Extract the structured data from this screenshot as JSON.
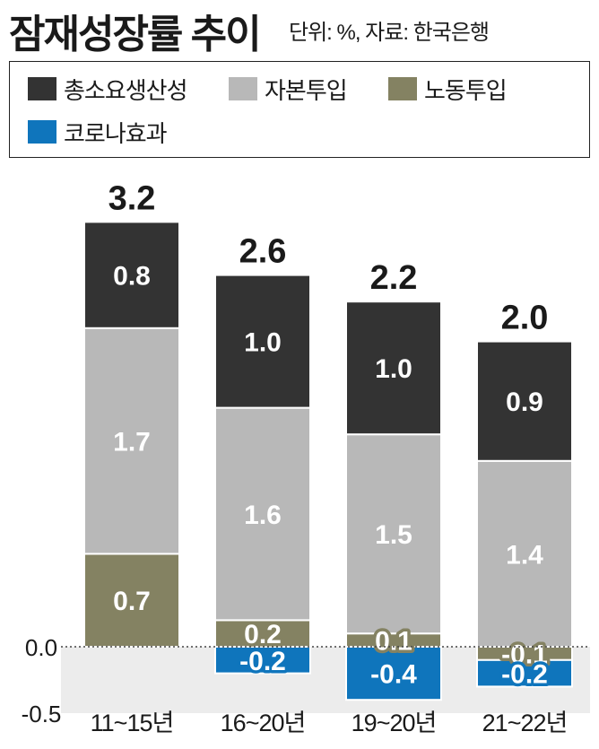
{
  "header": {
    "title": "잠재성장률 추이",
    "subtitle": "단위: %, 자료: 한국은행"
  },
  "colors": {
    "tfp": "#333333",
    "capital": "#b8b8b8",
    "labor": "#848262",
    "covid": "#0f75bc",
    "negative_zone": "#ececec"
  },
  "chart_data": {
    "type": "bar",
    "stacked": true,
    "title": "잠재성장률 추이",
    "unit": "단위: %",
    "source": "자료: 한국은행",
    "categories": [
      "11~15년",
      "16~20년",
      "19~20년",
      "21~22년"
    ],
    "totals": [
      3.2,
      2.6,
      2.2,
      2.0
    ],
    "series": [
      {
        "name": "노동투입",
        "values": [
          0.7,
          0.2,
          0.1,
          -0.1
        ],
        "labels": [
          "0.7",
          "0.2",
          "0.1",
          "-0.1"
        ]
      },
      {
        "name": "자본투입",
        "values": [
          1.7,
          1.6,
          1.5,
          1.4
        ],
        "labels": [
          "1.7",
          "1.6",
          "1.5",
          "1.4"
        ]
      },
      {
        "name": "총소요생산성",
        "values": [
          0.8,
          1.0,
          1.0,
          0.9
        ],
        "labels": [
          "0.8",
          "1.0",
          "1.0",
          "0.9"
        ]
      },
      {
        "name": "코로나효과",
        "values": [
          0,
          -0.2,
          -0.4,
          -0.2
        ],
        "labels": [
          "",
          "-0.2",
          "-0.4",
          "-0.2"
        ]
      }
    ],
    "legend": [
      "총소요생산성",
      "자본투입",
      "노동투입",
      "코로나효과"
    ],
    "yticks": [
      "0.0",
      "-0.5"
    ],
    "ylim": [
      -0.5,
      3.2
    ],
    "legend_position": "top"
  }
}
